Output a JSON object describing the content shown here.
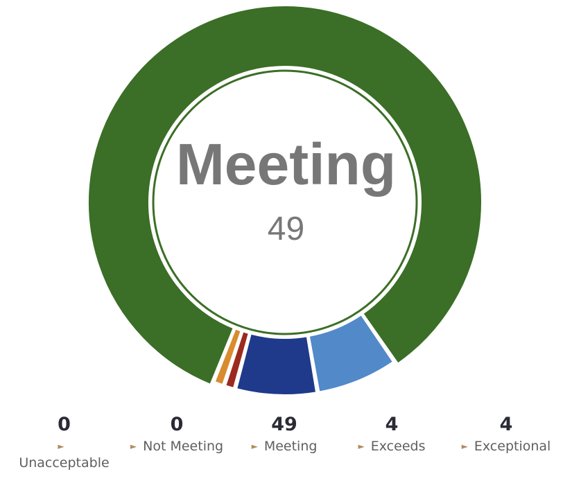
{
  "chart_data": {
    "type": "pie",
    "center_label": "Meeting",
    "center_value": "49",
    "start_angle": 195,
    "slices": [
      {
        "label": "Unacceptable",
        "value": 0.55,
        "color": "#9c2a1e"
      },
      {
        "label": "Not Meeting",
        "value": 0.55,
        "color": "#d98b2e"
      },
      {
        "label": "Meeting",
        "value": 49,
        "color": "#3b6e26"
      },
      {
        "label": "Exceeds",
        "value": 4,
        "color": "#5289c9"
      },
      {
        "label": "Exceptional",
        "value": 4,
        "color": "#1f3a8a"
      }
    ],
    "highlight": "Meeting"
  },
  "legend": [
    {
      "count": "0",
      "label": "Unacceptable"
    },
    {
      "count": "0",
      "label": "Not Meeting"
    },
    {
      "count": "49",
      "label": "Meeting"
    },
    {
      "count": "4",
      "label": "Exceeds"
    },
    {
      "count": "4",
      "label": "Exceptional"
    }
  ]
}
